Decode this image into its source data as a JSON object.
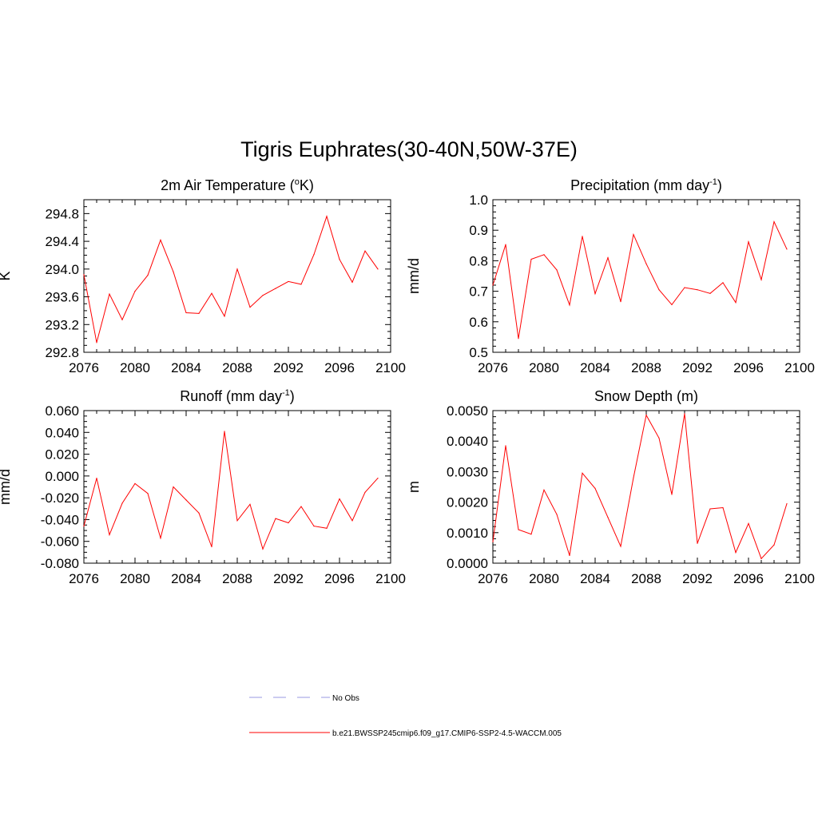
{
  "figure": {
    "title": "Tigris Euphrates(30-40N,50W-37E)"
  },
  "legend": [
    {
      "label": "No Obs",
      "color": "#9a9ae0",
      "dash": true
    },
    {
      "label": "b.e21.BWSSP245cmip6.f09_g17.CMIP6-SSP2-4.5-WACCM.005",
      "color": "#ff0000",
      "dash": false
    }
  ],
  "series_color": "#ff0000",
  "chart_data": [
    {
      "type": "line",
      "title": "2m Air Temperature (",
      "title_sup": "o",
      "title_tail": "K)",
      "ylabel": "K",
      "xlim": [
        2076,
        2100
      ],
      "x_ticks": [
        2076,
        2080,
        2084,
        2088,
        2092,
        2096,
        2100
      ],
      "x_tick_labels": [
        "2076",
        "2080",
        "2084",
        "2088",
        "2092",
        "2096",
        "2100"
      ],
      "ylim": [
        292.8,
        295.0
      ],
      "y_ticks": [
        292.8,
        293.2,
        293.6,
        294.0,
        294.4,
        294.8
      ],
      "y_tick_labels": [
        "292.8",
        "293.2",
        "293.6",
        "294.0",
        "294.4",
        "294.8"
      ],
      "y_minor": 0.1,
      "x": [
        2076,
        2077,
        2078,
        2079,
        2080,
        2081,
        2082,
        2083,
        2084,
        2085,
        2086,
        2087,
        2088,
        2089,
        2090,
        2091,
        2092,
        2093,
        2094,
        2095,
        2096,
        2097,
        2098,
        2099
      ],
      "values": [
        293.92,
        292.94,
        293.64,
        293.27,
        293.68,
        293.91,
        294.42,
        293.96,
        293.37,
        293.36,
        293.65,
        293.32,
        294.0,
        293.45,
        293.62,
        293.72,
        293.82,
        293.78,
        294.21,
        294.76,
        294.14,
        293.81,
        294.26,
        294.0
      ]
    },
    {
      "type": "line",
      "title": "Precipitation (mm day",
      "title_sup": "-1",
      "title_tail": ")",
      "ylabel": "mm/d",
      "xlim": [
        2076,
        2100
      ],
      "x_ticks": [
        2076,
        2080,
        2084,
        2088,
        2092,
        2096,
        2100
      ],
      "x_tick_labels": [
        "2076",
        "2080",
        "2084",
        "2088",
        "2092",
        "2096",
        "2100"
      ],
      "ylim": [
        0.5,
        1.0
      ],
      "y_ticks": [
        0.5,
        0.6,
        0.7,
        0.8,
        0.9,
        1.0
      ],
      "y_tick_labels": [
        "0.5",
        "0.6",
        "0.7",
        "0.8",
        "0.9",
        "1.0"
      ],
      "y_minor": 0.02,
      "x": [
        2076,
        2077,
        2078,
        2079,
        2080,
        2081,
        2082,
        2083,
        2084,
        2085,
        2086,
        2087,
        2088,
        2089,
        2090,
        2091,
        2092,
        2093,
        2094,
        2095,
        2096,
        2097,
        2098,
        2099
      ],
      "values": [
        0.72,
        0.853,
        0.545,
        0.805,
        0.82,
        0.77,
        0.655,
        0.88,
        0.692,
        0.81,
        0.666,
        0.886,
        0.79,
        0.705,
        0.656,
        0.712,
        0.705,
        0.693,
        0.728,
        0.663,
        0.862,
        0.738,
        0.928,
        0.838
      ]
    },
    {
      "type": "line",
      "title": "Runoff (mm day",
      "title_sup": "-1",
      "title_tail": ")",
      "ylabel": "mm/d",
      "xlim": [
        2076,
        2100
      ],
      "x_ticks": [
        2076,
        2080,
        2084,
        2088,
        2092,
        2096,
        2100
      ],
      "x_tick_labels": [
        "2076",
        "2080",
        "2084",
        "2088",
        "2092",
        "2096",
        "2100"
      ],
      "ylim": [
        -0.08,
        0.06
      ],
      "y_ticks": [
        -0.08,
        -0.06,
        -0.04,
        -0.02,
        0.0,
        0.02,
        0.04,
        0.06
      ],
      "y_tick_labels": [
        "-0.080",
        "-0.060",
        "-0.040",
        "-0.020",
        "0.000",
        "0.020",
        "0.040",
        "0.060"
      ],
      "y_minor": 0.005,
      "x": [
        2076,
        2077,
        2078,
        2079,
        2080,
        2081,
        2082,
        2083,
        2084,
        2085,
        2086,
        2087,
        2088,
        2089,
        2090,
        2091,
        2092,
        2093,
        2094,
        2095,
        2096,
        2097,
        2098,
        2099
      ],
      "values": [
        -0.046,
        -0.002,
        -0.054,
        -0.025,
        -0.007,
        -0.016,
        -0.057,
        -0.01,
        -0.022,
        -0.034,
        -0.065,
        0.041,
        -0.041,
        -0.026,
        -0.067,
        -0.039,
        -0.043,
        -0.028,
        -0.046,
        -0.048,
        -0.021,
        -0.041,
        -0.015,
        -0.002
      ]
    },
    {
      "type": "line",
      "title": "Snow Depth (m)",
      "title_sup": "",
      "title_tail": "",
      "ylabel": "m",
      "xlim": [
        2076,
        2100
      ],
      "x_ticks": [
        2076,
        2080,
        2084,
        2088,
        2092,
        2096,
        2100
      ],
      "x_tick_labels": [
        "2076",
        "2080",
        "2084",
        "2088",
        "2092",
        "2096",
        "2100"
      ],
      "ylim": [
        0.0,
        0.005
      ],
      "y_ticks": [
        0.0,
        0.001,
        0.002,
        0.003,
        0.004,
        0.005
      ],
      "y_tick_labels": [
        "0.0000",
        "0.0010",
        "0.0020",
        "0.0030",
        "0.0040",
        "0.0050"
      ],
      "y_minor": 0.0002,
      "x": [
        2076,
        2077,
        2078,
        2079,
        2080,
        2081,
        2082,
        2083,
        2084,
        2085,
        2086,
        2087,
        2088,
        2089,
        2090,
        2091,
        2092,
        2093,
        2094,
        2095,
        2096,
        2097,
        2098,
        2099
      ],
      "values": [
        0.0007,
        0.00385,
        0.0011,
        0.00095,
        0.0024,
        0.0016,
        0.00025,
        0.00295,
        0.00245,
        0.0015,
        0.00055,
        0.0028,
        0.00485,
        0.0041,
        0.00225,
        0.0049,
        0.00065,
        0.00178,
        0.00182,
        0.00035,
        0.0013,
        0.00015,
        0.0006,
        0.00195
      ]
    }
  ]
}
